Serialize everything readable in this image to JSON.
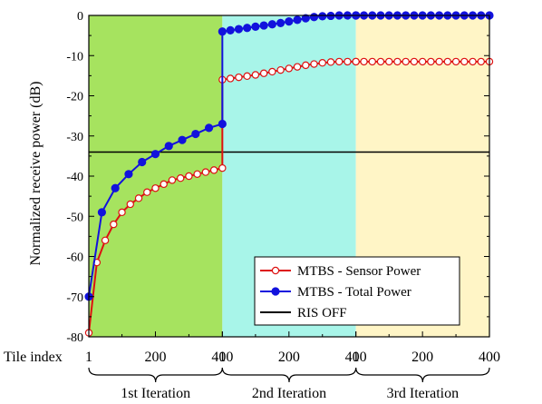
{
  "chart_data": {
    "type": "line",
    "ylabel": "Normalized receive power (dB)",
    "xlabel": "Tile index",
    "ylim": [
      -80,
      0
    ],
    "yticks": [
      "0",
      "-10",
      "-20",
      "-30",
      "-40",
      "-50",
      "-60",
      "-70",
      "-80"
    ],
    "ytick_values": [
      0,
      -10,
      -20,
      -30,
      -40,
      -50,
      -60,
      -70,
      -80
    ],
    "xtick_labels": [
      "1",
      "200",
      "400"
    ],
    "xtick_values": [
      1,
      200,
      400
    ],
    "grid": false,
    "legend_position": "bottom-right",
    "regions": [
      {
        "name": "1st Iteration",
        "color": "#a6e35f",
        "x_range": [
          1,
          400
        ]
      },
      {
        "name": "2nd Iteration",
        "color": "#a8f5e9",
        "x_range": [
          1,
          400
        ]
      },
      {
        "name": "3rd Iteration",
        "color": "#fff5c6",
        "x_range": [
          1,
          400
        ]
      }
    ],
    "series": [
      {
        "name": "MTBS - Sensor Power",
        "color": "#dd1111",
        "marker": "open-circle",
        "segments": [
          {
            "iteration": 1,
            "x": [
              1,
              25,
              50,
              75,
              100,
              125,
              150,
              175,
              200,
              225,
              250,
              275,
              300,
              325,
              350,
              375,
              400
            ],
            "y": [
              -79,
              -61.5,
              -56,
              -52,
              -49,
              -47,
              -45.5,
              -44,
              -43,
              -42,
              -41,
              -40.5,
              -40,
              -39.5,
              -39,
              -38.5,
              -38
            ]
          },
          {
            "iteration": 2,
            "x": [
              1,
              25,
              50,
              75,
              100,
              125,
              150,
              175,
              200,
              225,
              250,
              275,
              300,
              325,
              350,
              375,
              400
            ],
            "y": [
              -16,
              -15.7,
              -15.4,
              -15.1,
              -14.8,
              -14.4,
              -14,
              -13.6,
              -13.2,
              -12.8,
              -12.4,
              -12.1,
              -11.8,
              -11.6,
              -11.5,
              -11.5,
              -11.5
            ]
          },
          {
            "iteration": 3,
            "x": [
              1,
              25,
              50,
              75,
              100,
              125,
              150,
              175,
              200,
              225,
              250,
              275,
              300,
              325,
              350,
              375,
              400
            ],
            "y": [
              -11.5,
              -11.5,
              -11.5,
              -11.5,
              -11.5,
              -11.5,
              -11.5,
              -11.5,
              -11.5,
              -11.5,
              -11.5,
              -11.5,
              -11.5,
              -11.5,
              -11.5,
              -11.5,
              -11.5
            ]
          }
        ]
      },
      {
        "name": "MTBS - Total Power",
        "color": "#1212dd",
        "marker": "filled-circle",
        "segments": [
          {
            "iteration": 1,
            "x": [
              1,
              40,
              80,
              120,
              160,
              200,
              240,
              280,
              320,
              360,
              400
            ],
            "y": [
              -70,
              -49,
              -43,
              -39.5,
              -36.5,
              -34.5,
              -32.5,
              -31,
              -29.5,
              -28,
              -27
            ]
          },
          {
            "iteration": 2,
            "x": [
              1,
              25,
              50,
              75,
              100,
              125,
              150,
              175,
              200,
              225,
              250,
              275,
              300,
              325,
              350,
              375,
              400
            ],
            "y": [
              -4,
              -3.7,
              -3.4,
              -3.1,
              -2.8,
              -2.5,
              -2.2,
              -1.9,
              -1.5,
              -1.1,
              -0.7,
              -0.4,
              -0.2,
              -0.1,
              0,
              0,
              0
            ]
          },
          {
            "iteration": 3,
            "x": [
              1,
              25,
              50,
              75,
              100,
              125,
              150,
              175,
              200,
              225,
              250,
              275,
              300,
              325,
              350,
              375,
              400
            ],
            "y": [
              0,
              0,
              0,
              0,
              0,
              0,
              0,
              0,
              0,
              0,
              0,
              0,
              0,
              0,
              0,
              0,
              0
            ]
          }
        ]
      },
      {
        "name": "RIS OFF",
        "color": "#000000",
        "marker": "none",
        "constant": -34
      }
    ]
  }
}
